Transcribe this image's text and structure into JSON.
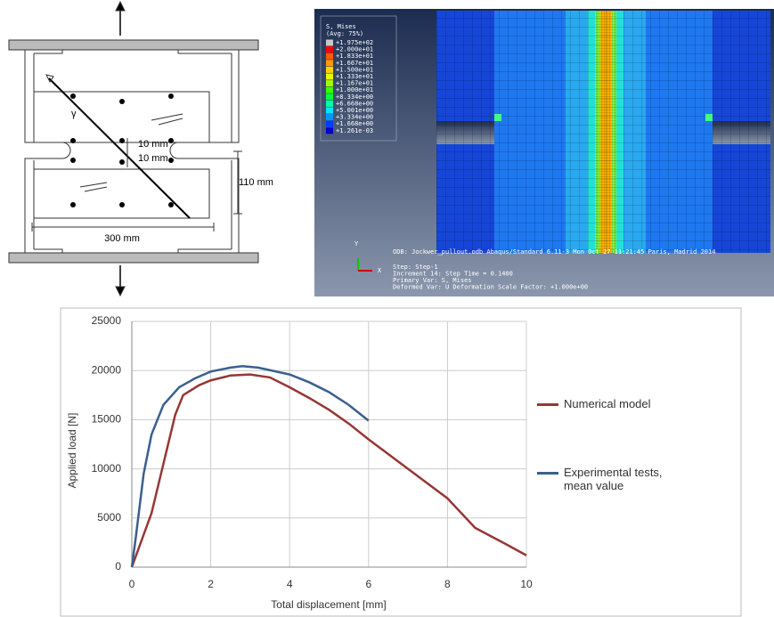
{
  "diagram": {
    "gap_top_label": "10 mm",
    "gap_bottom_label": "10 mm",
    "height_label": "110 mm",
    "width_label": "300 mm",
    "angle_label": "γ"
  },
  "fem": {
    "legend_title": "S, Mises",
    "legend_subtitle": "(Avg: 75%)",
    "legend": [
      {
        "label": "+1.975e+02",
        "color": "#c8c8c8"
      },
      {
        "label": "+2.000e+01",
        "color": "#ff0000"
      },
      {
        "label": "+1.833e+01",
        "color": "#ff5a00"
      },
      {
        "label": "+1.667e+01",
        "color": "#ff9a00"
      },
      {
        "label": "+1.500e+01",
        "color": "#ffd200"
      },
      {
        "label": "+1.333e+01",
        "color": "#e6ff00"
      },
      {
        "label": "+1.167e+01",
        "color": "#a0ff00"
      },
      {
        "label": "+1.000e+01",
        "color": "#3cff00"
      },
      {
        "label": "+8.334e+00",
        "color": "#00ff3c"
      },
      {
        "label": "+6.668e+00",
        "color": "#00ffaa"
      },
      {
        "label": "+5.001e+00",
        "color": "#00e6ff"
      },
      {
        "label": "+3.334e+00",
        "color": "#0096ff"
      },
      {
        "label": "+1.668e+00",
        "color": "#003cff"
      },
      {
        "label": "+1.261e-03",
        "color": "#0000c8"
      }
    ],
    "axis_y": "Y",
    "axis_x": "X",
    "info": [
      "ODB: Jockwer_pullout.odb    Abaqus/Standard 6.11-3    Mon Oct 27 11:21:45 Paris, Madrid 2014",
      "Step: Step-1",
      "Increment    14: Step Time =    0.1400",
      "Primary Var: S, Mises",
      "Deformed Var: U   Deformation Scale Factor: +1.000e+00"
    ]
  },
  "chart_data": {
    "type": "line",
    "x_label": "Total displacement [mm]",
    "y_label": "Applied load [N]",
    "xlim": [
      0,
      10
    ],
    "ylim": [
      0,
      25000
    ],
    "xticks": [
      0,
      2,
      4,
      6,
      8,
      10
    ],
    "yticks": [
      0,
      5000,
      10000,
      15000,
      20000,
      25000
    ],
    "grid": true,
    "legend": "right",
    "series": [
      {
        "name": "Numerical model",
        "color": "#953735",
        "x": [
          0,
          0.5,
          1.1,
          1.3,
          1.7,
          2,
          2.5,
          3,
          3.5,
          4,
          4.5,
          5,
          5.5,
          6,
          7,
          8,
          8.7,
          9.5,
          10
        ],
        "values": [
          0,
          5500,
          15500,
          17500,
          18500,
          19000,
          19500,
          19600,
          19300,
          18300,
          17200,
          16000,
          14600,
          13000,
          10000,
          7000,
          4000,
          2300,
          1200
        ]
      },
      {
        "name": "Experimental tests, mean value",
        "color": "#3b5f8f",
        "x": [
          0,
          0.1,
          0.3,
          0.5,
          0.8,
          1.2,
          1.6,
          2,
          2.5,
          2.8,
          3.2,
          4,
          4.5,
          5,
          5.5,
          6
        ],
        "values": [
          0,
          3000,
          9500,
          13500,
          16500,
          18300,
          19200,
          19900,
          20300,
          20450,
          20300,
          19600,
          18800,
          17800,
          16500,
          14900
        ]
      }
    ]
  }
}
